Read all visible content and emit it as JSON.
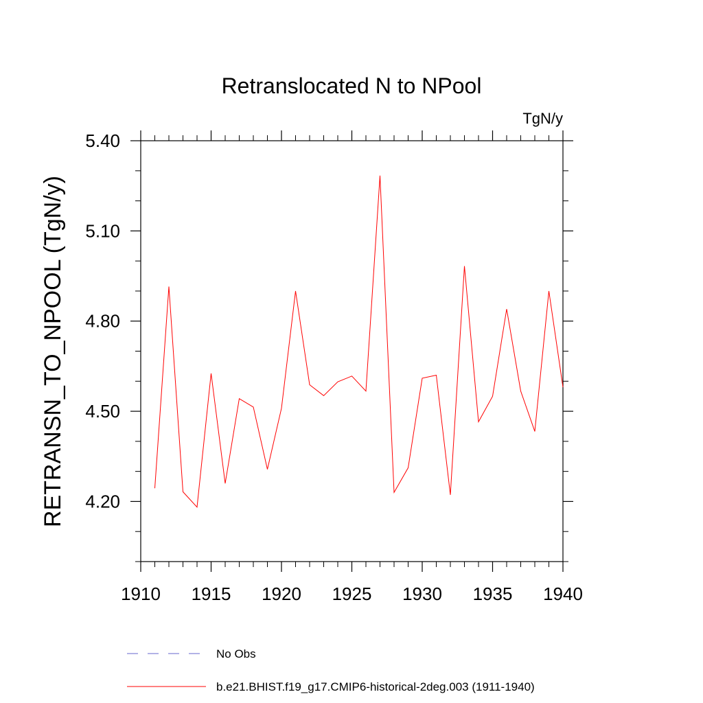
{
  "chart_data": {
    "type": "line",
    "title": "Retranslocated N to NPool",
    "units_label": "TgN/y",
    "ylabel": "RETRANSN_TO_NPOOL  (TgN/y)",
    "xlabel": "",
    "xlim": [
      1910,
      1940
    ],
    "ylim": [
      4.0,
      5.4
    ],
    "x_ticks": [
      1910,
      1915,
      1920,
      1925,
      1930,
      1935,
      1940
    ],
    "x_tick_labels": [
      "1910",
      "1915",
      "1920",
      "1925",
      "1930",
      "1935",
      "1940"
    ],
    "y_ticks": [
      4.2,
      4.5,
      4.8,
      5.1,
      5.4
    ],
    "y_tick_labels": [
      "4.20",
      "4.50",
      "4.80",
      "5.10",
      "5.40"
    ],
    "grid": false,
    "legend_position": "bottom",
    "series": [
      {
        "name": "b.e21.BHIST.f19_g17.CMIP6-historical-2deg.003 (1911-1940)",
        "color": "#ff0000",
        "line_style": "solid",
        "x": [
          1911,
          1912,
          1913,
          1914,
          1915,
          1916,
          1917,
          1918,
          1919,
          1920,
          1921,
          1922,
          1923,
          1924,
          1925,
          1926,
          1927,
          1928,
          1929,
          1930,
          1931,
          1932,
          1933,
          1934,
          1935,
          1936,
          1937,
          1938,
          1939,
          1940
        ],
        "values": [
          4.244,
          4.915,
          4.232,
          4.181,
          4.626,
          4.26,
          4.542,
          4.514,
          4.307,
          4.51,
          4.9,
          4.588,
          4.552,
          4.598,
          4.617,
          4.567,
          5.284,
          4.23,
          4.312,
          4.61,
          4.62,
          4.222,
          4.983,
          4.465,
          4.55,
          4.84,
          4.567,
          4.433,
          4.9,
          4.58
        ]
      }
    ],
    "legend": [
      {
        "label": "No Obs",
        "color": "#6666cc",
        "line_style": "dashed"
      },
      {
        "label": "b.e21.BHIST.f19_g17.CMIP6-historical-2deg.003 (1911-1940)",
        "color": "#ff0000",
        "line_style": "solid"
      }
    ]
  }
}
